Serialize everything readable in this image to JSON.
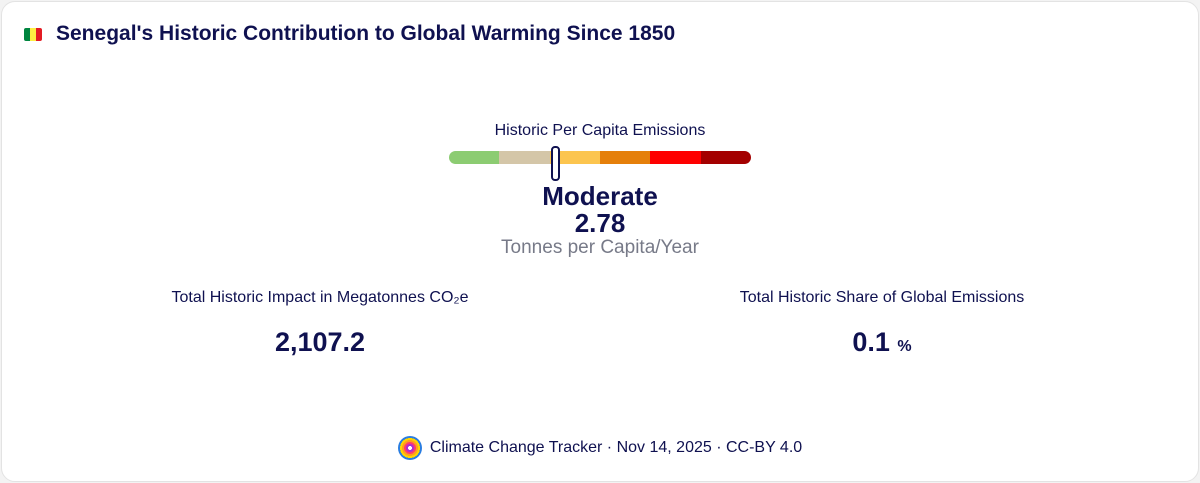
{
  "header": {
    "flag_icon": "senegal-flag-icon",
    "flag_colors": [
      "#00853f",
      "#fdef42",
      "#e31b23"
    ],
    "title": "Senegal's Historic Contribution to Global Warming Since 1850"
  },
  "gauge": {
    "label": "Historic Per Capita Emissions",
    "segment_colors": [
      "#8ccc72",
      "#d4c6a8",
      "#fcc54f",
      "#e57f0a",
      "#fe0000",
      "#a40000"
    ],
    "marker_position_fraction": 0.35,
    "level": "Moderate",
    "value": "2.78",
    "unit": "Tonnes per Capita/Year"
  },
  "stats": [
    {
      "label": "Total Historic Impact in Megatonnes CO₂e",
      "value": "2,107.2"
    },
    {
      "label": "Total Historic Share of Global Emissions",
      "value": "0.1",
      "unit": "%"
    }
  ],
  "footer": {
    "logo_icon": "climate-change-tracker-logo",
    "text": "Climate Change Tracker · Nov 14, 2025 · CC-BY 4.0"
  }
}
